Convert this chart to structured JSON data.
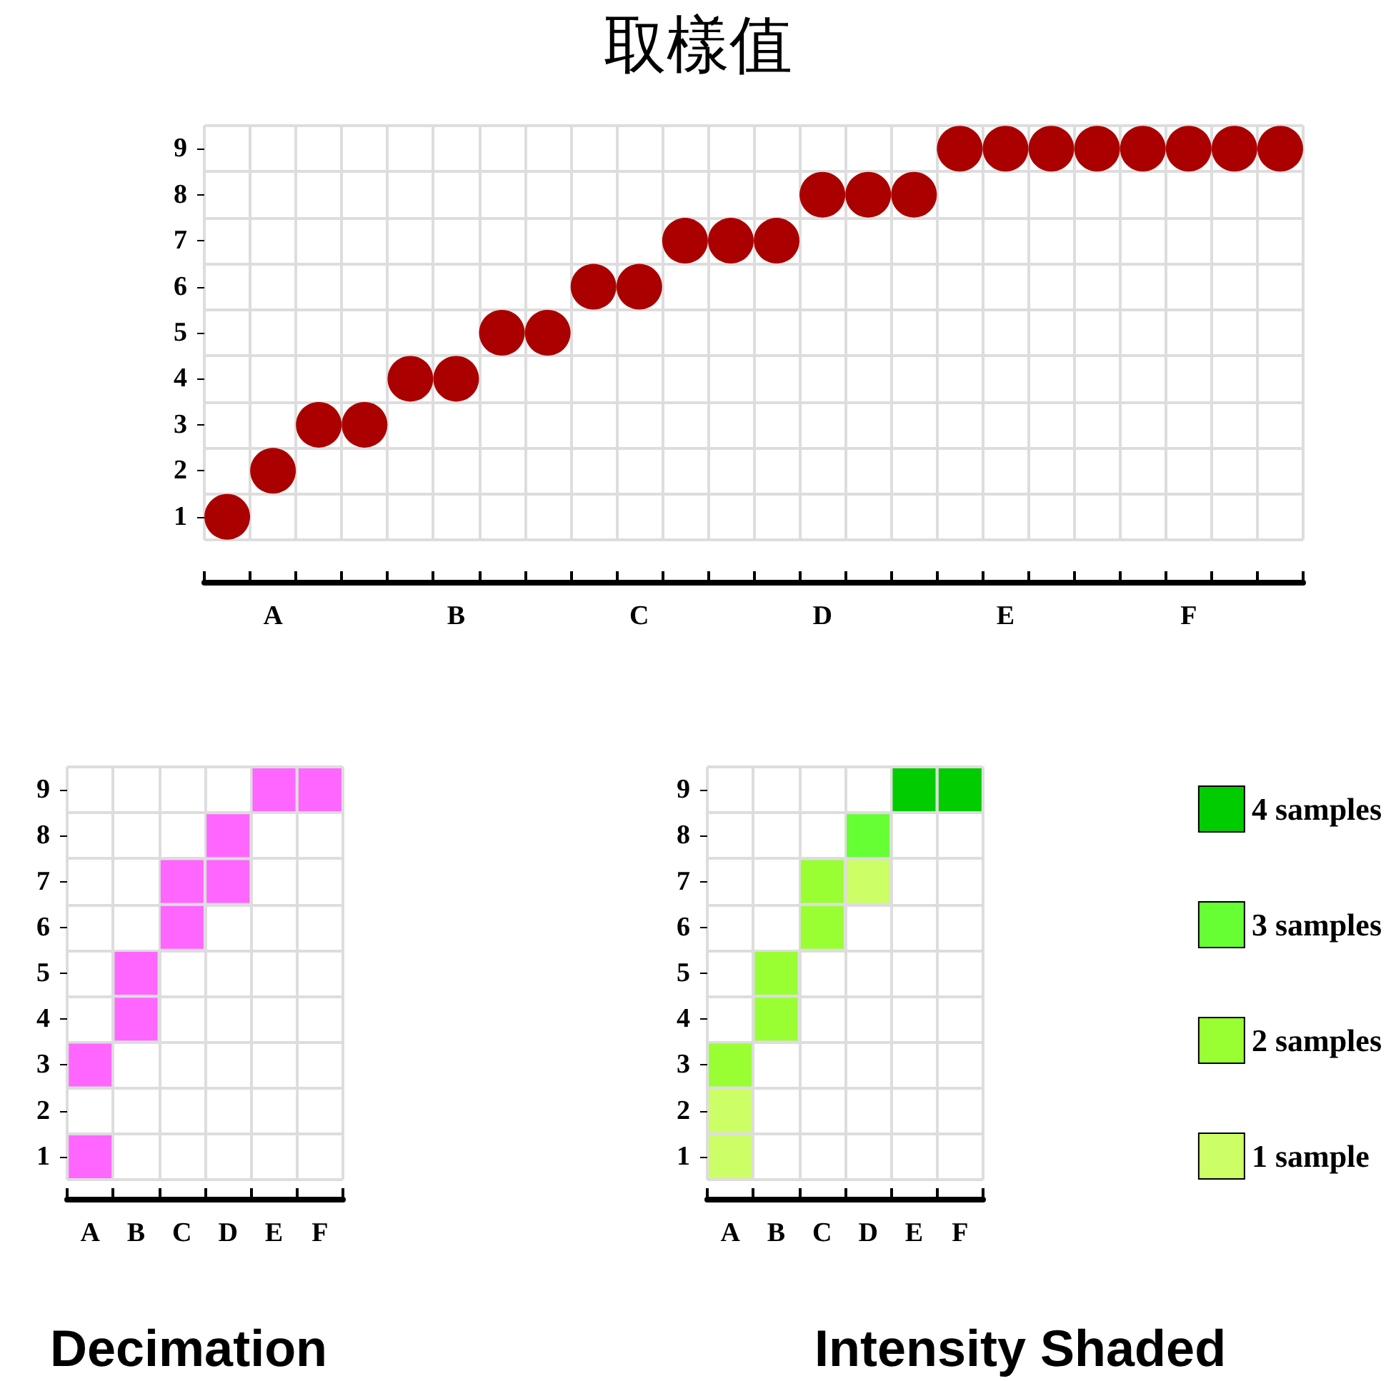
{
  "chart_data": [
    {
      "type": "scatter",
      "title": "取樣值",
      "categories": [
        null,
        "A",
        null,
        null,
        null,
        "B",
        null,
        null,
        null,
        "C",
        null,
        null,
        null,
        "D",
        null,
        null,
        null,
        "E",
        null,
        null,
        null,
        "F",
        null,
        null
      ],
      "series": [
        {
          "color": "#aa0000",
          "values": [
            1,
            2,
            3,
            3,
            4,
            4,
            5,
            5,
            6,
            6,
            7,
            7,
            7,
            8,
            8,
            8,
            9,
            9,
            9,
            9,
            9,
            9,
            9,
            9
          ]
        }
      ],
      "ylim": [
        0.5,
        9.5
      ],
      "yticks": [
        1,
        2,
        3,
        4,
        5,
        6,
        7,
        8,
        9
      ],
      "grid": true,
      "marker": "circle",
      "legend": false
    },
    {
      "type": "scatter",
      "title": "Decimation",
      "categories": [
        "A",
        "B",
        "C",
        "D",
        "E",
        "F"
      ],
      "series": [
        {
          "color": "#ff66ff",
          "x": [
            "A",
            "A",
            "B",
            "B",
            "C",
            "C",
            "D",
            "D",
            "E",
            "F"
          ],
          "values": [
            1,
            3,
            4,
            5,
            6,
            7,
            7,
            8,
            9,
            9
          ]
        }
      ],
      "ylim": [
        0.5,
        9.5
      ],
      "yticks": [
        1,
        2,
        3,
        4,
        5,
        6,
        7,
        8,
        9
      ],
      "grid": true,
      "marker": "square",
      "legend": false
    },
    {
      "type": "scatter",
      "title": "Intensity Shaded",
      "categories": [
        "A",
        "B",
        "C",
        "D",
        "E",
        "F"
      ],
      "series": [
        {
          "name": "4 samples",
          "color": "#00cc00",
          "x": [
            "E",
            "F"
          ],
          "values": [
            9,
            9
          ]
        },
        {
          "name": "3 samples",
          "color": "#66ff33",
          "x": [
            "D"
          ],
          "values": [
            8
          ]
        },
        {
          "name": "2 samples",
          "color": "#99ff33",
          "x": [
            "A",
            "B",
            "B",
            "C",
            "C"
          ],
          "values": [
            3,
            4,
            5,
            6,
            7
          ]
        },
        {
          "name": "1 sample",
          "color": "#ccff66",
          "x": [
            "A",
            "A",
            "D"
          ],
          "values": [
            1,
            2,
            7
          ]
        }
      ],
      "ylim": [
        0.5,
        9.5
      ],
      "yticks": [
        1,
        2,
        3,
        4,
        5,
        6,
        7,
        8,
        9
      ],
      "grid": true,
      "marker": "square",
      "legend": "right"
    }
  ]
}
